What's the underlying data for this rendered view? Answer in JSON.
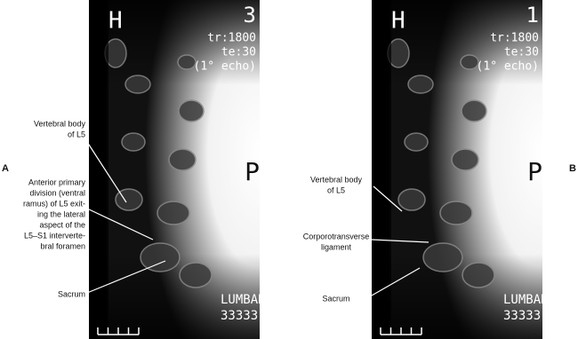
{
  "panels": [
    {
      "letter": "A",
      "overlay": {
        "orientation": "H",
        "slice": "3",
        "tr": "tr:1800",
        "te": "te:30",
        "echo": "(1° echo)",
        "side": "P",
        "region": "LUMBAR",
        "id": "33333"
      },
      "labels": [
        {
          "lines": [
            "Vertebral body",
            "of L5"
          ]
        },
        {
          "lines": [
            "Anterior primary",
            "division (ventral",
            "ramus) of L5 exit-",
            "ing the lateral",
            "aspect of the",
            "L5–S1 interverte-",
            "bral foramen"
          ]
        },
        {
          "lines": [
            "Sacrum"
          ]
        }
      ]
    },
    {
      "letter": "B",
      "overlay": {
        "orientation": "H",
        "slice": "1",
        "tr": "tr:1800",
        "te": "te:30",
        "echo": "(1° echo)",
        "side": "P",
        "region": "LUMBAR",
        "id": "33333"
      },
      "labels": [
        {
          "lines": [
            "Vertebral body",
            "of L5"
          ]
        },
        {
          "lines": [
            "Corporotransverse",
            "ligament"
          ]
        },
        {
          "lines": [
            "Sacrum"
          ]
        }
      ]
    }
  ]
}
